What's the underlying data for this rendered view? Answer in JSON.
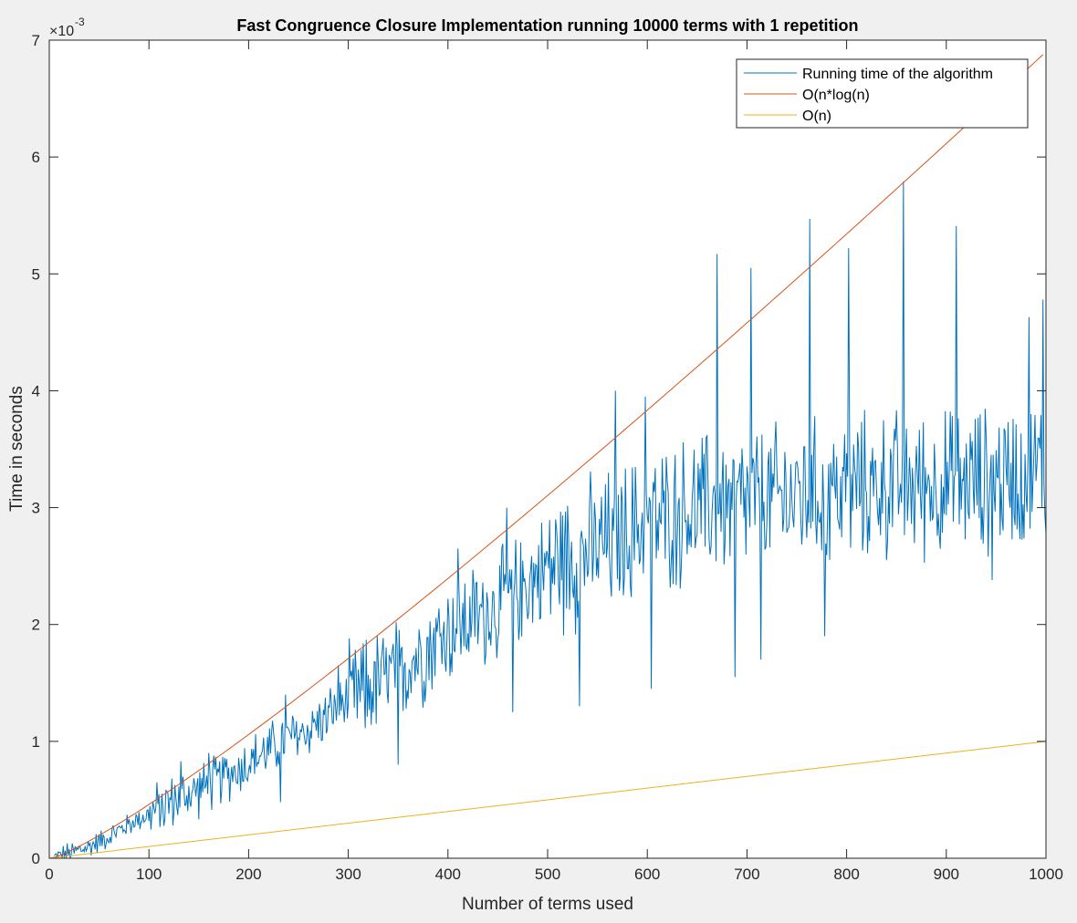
{
  "chart_data": {
    "type": "line",
    "title": "Fast Congruence Closure Implementation running 10000 terms with 1 repetition",
    "xlabel": "Number of terms used",
    "ylabel": "Time in seconds",
    "exponent_base": "×10",
    "exponent_power": "-3",
    "xlim": [
      0,
      1000
    ],
    "ylim": [
      0,
      7
    ],
    "x_ticks": [
      0,
      100,
      200,
      300,
      400,
      500,
      600,
      700,
      800,
      900,
      1000
    ],
    "y_ticks": [
      0,
      1,
      2,
      3,
      4,
      5,
      6,
      7
    ],
    "grid": false,
    "legend_position": "top-right",
    "series": [
      {
        "name": "Running time of the algorithm",
        "color": "#0072bd",
        "description": "noisy measured running time, y in ×10^-3 s",
        "x": [
          5,
          20,
          40,
          60,
          80,
          100,
          130,
          160,
          200,
          230,
          260,
          300,
          350,
          400,
          450,
          500,
          550,
          600,
          650,
          700,
          750,
          800,
          850,
          900,
          950,
          1000
        ],
        "y": [
          0.0,
          0.04,
          0.1,
          0.19,
          0.29,
          0.38,
          0.52,
          0.62,
          0.82,
          0.98,
          1.1,
          1.35,
          1.6,
          1.95,
          2.15,
          2.5,
          2.65,
          2.85,
          3.0,
          3.05,
          3.1,
          3.15,
          3.2,
          3.2,
          3.25,
          3.35
        ],
        "peaks": [
          [
            132,
            0.83
          ],
          [
            160,
            0.9
          ],
          [
            237,
            1.4
          ],
          [
            290,
            1.65
          ],
          [
            410,
            2.65
          ],
          [
            459,
            3.0
          ],
          [
            568,
            4.0
          ],
          [
            598,
            3.95
          ],
          [
            670,
            5.17
          ],
          [
            704,
            5.05
          ],
          [
            763,
            5.47
          ],
          [
            802,
            5.22
          ],
          [
            857,
            5.79
          ],
          [
            910,
            5.41
          ],
          [
            983,
            4.63
          ],
          [
            997,
            4.78
          ]
        ],
        "dips": [
          [
            232,
            0.48
          ],
          [
            350,
            0.8
          ],
          [
            465,
            1.25
          ],
          [
            532,
            1.3
          ],
          [
            604,
            1.45
          ],
          [
            688,
            1.55
          ],
          [
            714,
            1.7
          ],
          [
            778,
            1.9
          ],
          [
            946,
            2.38
          ]
        ]
      },
      {
        "name": "O(n*log(n)",
        "color": "#d95319",
        "formula": "n*log(n)",
        "x": [
          0,
          1000
        ],
        "y": [
          0,
          6.9
        ]
      },
      {
        "name": "O(n)",
        "color": "#edb120",
        "formula": "n",
        "x": [
          0,
          1000
        ],
        "y": [
          0,
          1.0
        ]
      }
    ]
  }
}
